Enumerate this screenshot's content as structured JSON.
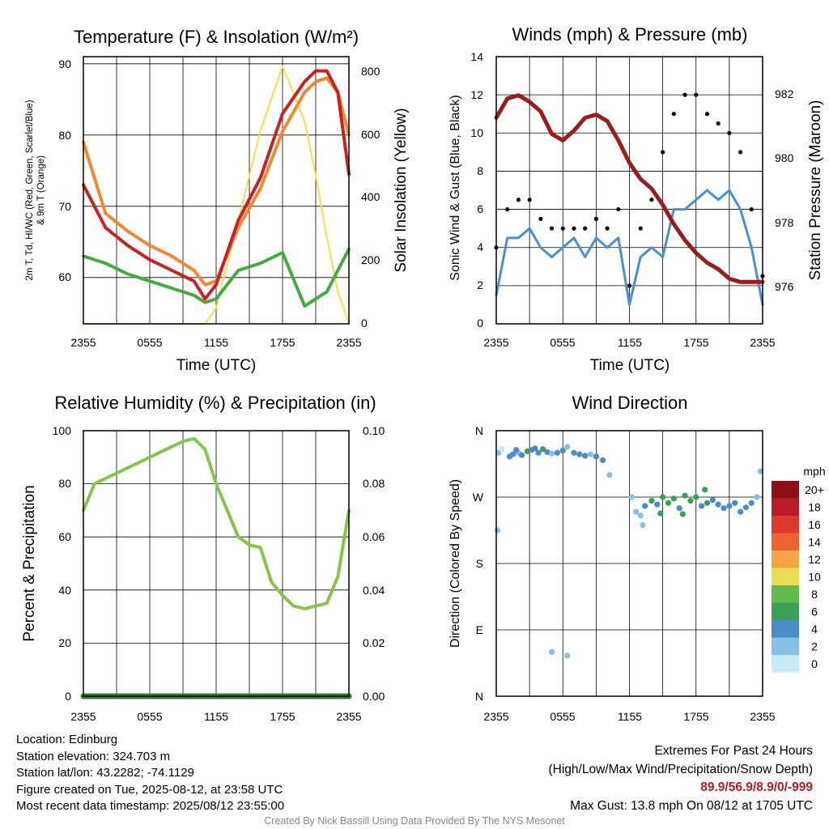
{
  "panels": {
    "temp": {
      "title": "Temperature (F) & Insolation (W/m²)",
      "xlabel": "Time (UTC)",
      "ylabel_line1": "2m T, Td, HI/WC (Red, Green, Scarlet/Blue)",
      "ylabel_line2": "& 9m T (Orange)",
      "ylabel_right": "Solar Insolation (Yellow)",
      "yticks_left": [
        "60",
        "70",
        "80",
        "90"
      ],
      "yticks_right": [
        "0",
        "200",
        "400",
        "600",
        "800"
      ]
    },
    "wind": {
      "title": "Winds (mph) & Pressure (mb)",
      "xlabel": "Time (UTC)",
      "ylabel": "Sonic Wind & Gust (Blue, Black)",
      "ylabel_right": "Station Pressure (Maroon)",
      "yticks_left": [
        "0",
        "2",
        "4",
        "6",
        "8",
        "10",
        "12",
        "14"
      ],
      "yticks_right": [
        "976",
        "978",
        "980",
        "982"
      ]
    },
    "rh": {
      "title": "Relative Humidity (%) & Precipitation (in)",
      "ylabel": "Percent & Precipitation",
      "yticks_left": [
        "0",
        "20",
        "40",
        "60",
        "80",
        "100"
      ],
      "yticks_right": [
        "0.00",
        "0.02",
        "0.04",
        "0.06",
        "0.08",
        "0.10"
      ]
    },
    "dir": {
      "title": "Wind Direction",
      "ylabel": "Direction (Colored By Speed)",
      "yticks": [
        "N",
        "E",
        "S",
        "W",
        "N"
      ]
    }
  },
  "xticks": [
    "2355",
    "0555",
    "1155",
    "1755",
    "2355"
  ],
  "legend": {
    "unit": "mph",
    "labels": [
      "0",
      "2",
      "4",
      "6",
      "8",
      "10",
      "12",
      "14",
      "16",
      "18",
      "20+"
    ],
    "colors": [
      "#c6e9f7",
      "#88bfe6",
      "#4a8cc6",
      "#3c9f58",
      "#63b94b",
      "#e6dd55",
      "#f5a446",
      "#ee6431",
      "#dc3a2c",
      "#b81d24",
      "#8c1115"
    ]
  },
  "footer": {
    "location": "Location: Edinburg",
    "elevation": "Station elevation: 324.703 m",
    "latlon": "Station lat/lon: 43.2282; -74.1129",
    "created": "Figure created on Tue, 2025-08-12, at 23:58 UTC",
    "recent": "Most recent data timestamp: 2025/08/12 23:55:00",
    "extremes_title": "Extremes For Past 24 Hours",
    "extremes_sub": "(High/Low/Max Wind/Precipitation/Snow Depth)",
    "extremes_values": "89.9/56.9/8.9/0/-999",
    "max_gust": "Max Gust: 13.8 mph On 08/12 at 1705 UTC",
    "credit": "Created By Nick Bassill Using Data Provided By The NYS Mesonet"
  },
  "chart_data": [
    {
      "type": "line",
      "title": "Temperature (F) & Insolation (W/m²)",
      "xlabel": "Time (UTC)",
      "x_hours_since_2355": [
        0,
        2,
        4,
        6,
        8,
        10,
        11,
        12,
        14,
        16,
        18,
        20,
        21,
        22,
        23,
        24
      ],
      "x_ticks": [
        "2355",
        "0555",
        "1155",
        "1755",
        "2355"
      ],
      "ylim": [
        53.5,
        91
      ],
      "y2lim": [
        0,
        830
      ],
      "series": [
        {
          "name": "2m T (Red)",
          "color": "#cc2020",
          "axis": "left",
          "values": [
            73,
            67,
            64.5,
            62.5,
            61,
            59.5,
            57,
            59,
            68,
            74,
            83,
            87.5,
            89,
            89,
            86,
            74.5
          ]
        },
        {
          "name": "9m T (Orange)",
          "color": "#f08a30",
          "axis": "left",
          "values": [
            79,
            69,
            66.5,
            64.5,
            63,
            61,
            59,
            59.5,
            67,
            72.5,
            80.5,
            86,
            87.5,
            88,
            86,
            80
          ]
        },
        {
          "name": "Td (Green)",
          "color": "#44aa44",
          "axis": "left",
          "values": [
            63,
            62,
            60.5,
            59.5,
            58.5,
            57.5,
            56.5,
            57,
            61,
            62,
            63.5,
            56,
            57,
            58,
            61,
            64
          ]
        },
        {
          "name": "Solar Insolation (Yellow)",
          "color": "#f0e050",
          "axis": "right",
          "values": [
            0,
            0,
            0,
            0,
            0,
            0,
            0,
            50,
            320,
            600,
            800,
            630,
            460,
            270,
            100,
            0
          ]
        }
      ]
    },
    {
      "type": "line",
      "title": "Winds (mph) & Pressure (mb)",
      "xlabel": "Time (UTC)",
      "x_hours_since_2355": [
        0,
        1,
        2,
        3,
        4,
        5,
        6,
        7,
        8,
        9,
        10,
        11,
        12,
        13,
        14,
        15,
        16,
        17,
        18,
        19,
        20,
        21,
        22,
        23,
        24
      ],
      "ylim": [
        0,
        14
      ],
      "y2lim": [
        975.1,
        983.4
      ],
      "series": [
        {
          "name": "Sonic Wind (Blue)",
          "color": "#4a90d0",
          "axis": "left",
          "values": [
            1.5,
            4.5,
            4.5,
            5,
            4,
            3.5,
            4,
            4.5,
            3.5,
            4.5,
            4,
            4.5,
            1,
            3.5,
            4,
            3.5,
            6,
            6,
            6.5,
            7,
            6.5,
            7,
            6,
            4,
            1
          ]
        },
        {
          "name": "Gust (Black)",
          "color": "#000000",
          "axis": "left",
          "values": [
            4,
            6,
            6.5,
            6.5,
            5.5,
            5,
            5,
            5,
            5,
            5.5,
            5,
            6,
            2,
            5,
            6.5,
            9,
            11,
            12,
            12,
            11,
            10.5,
            10,
            9,
            6,
            2.5
          ]
        },
        {
          "name": "Station Pressure (Maroon)",
          "color": "#9b1c1c",
          "axis": "right",
          "values": [
            981.5,
            982.1,
            982.2,
            982.0,
            981.7,
            981.0,
            980.8,
            981.1,
            981.5,
            981.6,
            981.4,
            980.8,
            980.1,
            979.6,
            979.3,
            978.8,
            978.2,
            977.7,
            977.3,
            977.0,
            976.8,
            976.5,
            976.4,
            976.4,
            976.4
          ]
        }
      ]
    },
    {
      "type": "line",
      "title": "Relative Humidity (%) & Precipitation (in)",
      "xlabel": "",
      "x_hours_since_2355": [
        0,
        1,
        2,
        3,
        4,
        5,
        6,
        7,
        8,
        9,
        10,
        11,
        12,
        13,
        14,
        15,
        16,
        17,
        18,
        19,
        20,
        21,
        22,
        23,
        24
      ],
      "ylim": [
        0,
        100
      ],
      "y2lim": [
        0,
        0.1
      ],
      "series": [
        {
          "name": "Relative Humidity",
          "color": "#8bc34a",
          "axis": "left",
          "values": [
            70,
            80,
            82,
            84,
            86,
            88,
            90,
            92,
            94,
            96,
            97,
            93,
            80,
            70,
            60,
            57,
            56,
            43,
            38,
            34,
            33,
            34,
            35,
            45,
            70
          ]
        },
        {
          "name": "Precipitation",
          "color": "#2e7d32",
          "axis": "right",
          "values": [
            0,
            0,
            0,
            0,
            0,
            0,
            0,
            0,
            0,
            0,
            0,
            0,
            0,
            0,
            0,
            0,
            0,
            0,
            0,
            0,
            0,
            0,
            0,
            0,
            0
          ]
        }
      ]
    },
    {
      "type": "scatter",
      "title": "Wind Direction",
      "ylabel": "Direction (Colored By Speed)",
      "x_ticks": [
        "2355",
        "0555",
        "1155",
        "1755",
        "2355"
      ],
      "y_ticks": [
        "N",
        "E",
        "S",
        "W",
        "N"
      ],
      "ylim": [
        0,
        360
      ],
      "points_hour_dir_speed": [
        [
          0.2,
          330,
          2
        ],
        [
          0.5,
          335,
          1
        ],
        [
          1.2,
          325,
          4
        ],
        [
          1.5,
          328,
          4
        ],
        [
          2.0,
          330,
          3
        ],
        [
          2.3,
          327,
          4
        ],
        [
          2.8,
          332,
          6
        ],
        [
          3.2,
          334,
          4
        ],
        [
          3.8,
          330,
          4
        ],
        [
          4.2,
          335,
          6
        ],
        [
          4.6,
          331,
          4
        ],
        [
          5.0,
          329,
          3
        ],
        [
          5.5,
          330,
          4
        ],
        [
          6.0,
          333,
          4
        ],
        [
          6.4,
          338,
          2
        ],
        [
          7.0,
          330,
          4
        ],
        [
          7.5,
          328,
          4
        ],
        [
          8.0,
          326,
          4
        ],
        [
          8.5,
          328,
          3
        ],
        [
          9.0,
          325,
          4
        ],
        [
          9.6,
          320,
          4
        ],
        [
          10.2,
          300,
          2
        ],
        [
          1.8,
          334,
          4
        ],
        [
          3.5,
          336,
          5
        ],
        [
          0.1,
          225,
          3
        ],
        [
          5.0,
          60,
          2
        ],
        [
          6.4,
          55,
          2
        ],
        [
          12.2,
          270,
          2
        ],
        [
          12.6,
          250,
          3
        ],
        [
          13.0,
          245,
          3
        ],
        [
          13.4,
          258,
          4
        ],
        [
          14.0,
          265,
          6
        ],
        [
          14.5,
          260,
          5
        ],
        [
          15.0,
          270,
          6
        ],
        [
          15.5,
          262,
          7
        ],
        [
          16.0,
          268,
          6
        ],
        [
          16.5,
          255,
          5
        ],
        [
          17.0,
          272,
          7
        ],
        [
          17.5,
          265,
          6
        ],
        [
          18.0,
          270,
          6
        ],
        [
          18.5,
          258,
          5
        ],
        [
          19.0,
          262,
          6
        ],
        [
          19.5,
          266,
          5
        ],
        [
          20.0,
          260,
          4
        ],
        [
          20.5,
          255,
          4
        ],
        [
          21.0,
          258,
          5
        ],
        [
          21.5,
          262,
          4
        ],
        [
          22.0,
          250,
          4
        ],
        [
          22.5,
          256,
          5
        ],
        [
          23.0,
          262,
          4
        ],
        [
          23.5,
          270,
          3
        ],
        [
          23.8,
          305,
          2
        ],
        [
          13.2,
          232,
          2
        ],
        [
          14.8,
          248,
          6
        ],
        [
          16.8,
          247,
          7
        ],
        [
          18.8,
          280,
          6
        ]
      ]
    }
  ]
}
